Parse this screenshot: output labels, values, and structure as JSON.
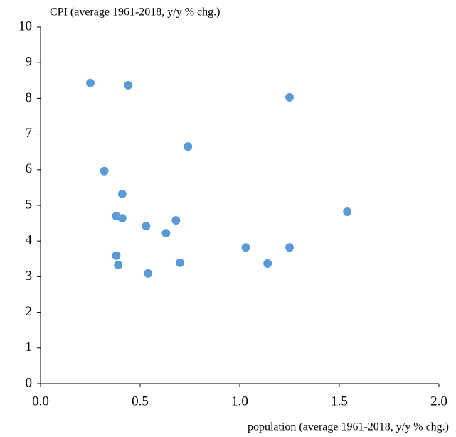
{
  "chart_data": {
    "type": "scatter",
    "y_label": "CPI (average 1961-2018, y/y % chg.)",
    "x_label": "population  (average 1961-2018, y/y % chg.)",
    "color": "#5b9bd5",
    "x": [
      0.25,
      0.44,
      1.25,
      0.74,
      0.32,
      0.41,
      0.38,
      0.41,
      0.68,
      1.54,
      0.53,
      0.63,
      1.03,
      1.25,
      0.38,
      0.39,
      0.7,
      1.14,
      0.54
    ],
    "values": [
      8.43,
      8.37,
      8.03,
      6.65,
      5.96,
      5.32,
      4.7,
      4.64,
      4.58,
      4.82,
      4.42,
      4.22,
      3.82,
      3.82,
      3.59,
      3.33,
      3.39,
      3.37,
      3.09
    ],
    "xlim": [
      0,
      2
    ],
    "xticks": [
      {
        "value": 0,
        "label": "0.0"
      },
      0.5,
      {
        "value": 1,
        "label": "1.0"
      },
      1.5,
      {
        "value": 2,
        "label": "2.0"
      }
    ],
    "ylim": [
      0,
      10
    ],
    "yticks": [
      0,
      1,
      2,
      3,
      4,
      5,
      6,
      7,
      8,
      9,
      10
    ]
  }
}
